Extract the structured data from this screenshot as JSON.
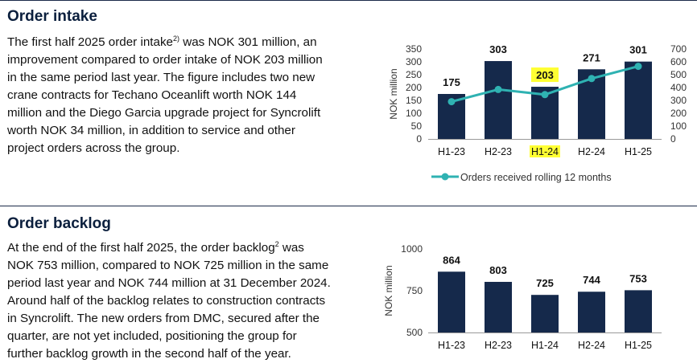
{
  "section1": {
    "heading": "Order intake",
    "text_lines": [
      [
        "The first half 2025 order intake",
        "2)",
        " was NOK 301 million, an"
      ],
      [
        "improvement compared to order intake of NOK 203 million"
      ],
      [
        "in the same period last year. The figure includes two new"
      ],
      [
        "crane contracts for Techano Oceanlift worth NOK 144"
      ],
      [
        "million and the Diego Garcia upgrade project for Syncrolift"
      ],
      [
        "worth NOK 34 million, in addition to service and other"
      ],
      [
        "project orders across the group."
      ]
    ]
  },
  "section2": {
    "heading": "Order backlog",
    "text_lines": [
      [
        "At the end of the first half 2025, the order backlog",
        "2",
        " was"
      ],
      [
        "NOK 753 million, compared to NOK 725 million in the same"
      ],
      [
        "period last year and NOK 744 million at 31 December 2024."
      ],
      [
        "Around half of the backlog relates to construction contracts"
      ],
      [
        "in Syncrolift. The new orders from DMC, secured after the"
      ],
      [
        "quarter, are not yet included, positioning the group for"
      ],
      [
        "further backlog growth in the second half of the year."
      ]
    ]
  },
  "colors": {
    "bar": "#15294b",
    "line": "#2fb2b2",
    "highlight": "#ffff33",
    "heading": "#0b1f3d"
  },
  "chart_data": [
    {
      "type": "bar",
      "categories": [
        "H1-23",
        "H2-23",
        "H1-24",
        "H2-24",
        "H1-25"
      ],
      "values": [
        175,
        303,
        203,
        271,
        301
      ],
      "ylabel": "NOK million",
      "ylim": [
        0,
        350
      ],
      "yticks": [
        0,
        50,
        100,
        150,
        200,
        250,
        300,
        350
      ],
      "y2lim": [
        0,
        700
      ],
      "y2ticks": [
        0,
        100,
        200,
        300,
        400,
        500,
        600,
        700
      ],
      "highlight_index": 2,
      "series": [
        {
          "name": "Orders received rolling 12 months",
          "type": "line",
          "axis": "secondary",
          "values": [
            290,
            385,
            345,
            470,
            565
          ]
        }
      ],
      "legend": "bottom",
      "grid": false
    },
    {
      "type": "bar",
      "categories": [
        "H1-23",
        "H2-23",
        "H1-24",
        "H2-24",
        "H1-25"
      ],
      "values": [
        864,
        803,
        725,
        744,
        753
      ],
      "ylabel": "NOK million",
      "ylim": [
        500,
        1000
      ],
      "yticks": [
        500,
        750,
        1000
      ],
      "grid": false
    }
  ]
}
